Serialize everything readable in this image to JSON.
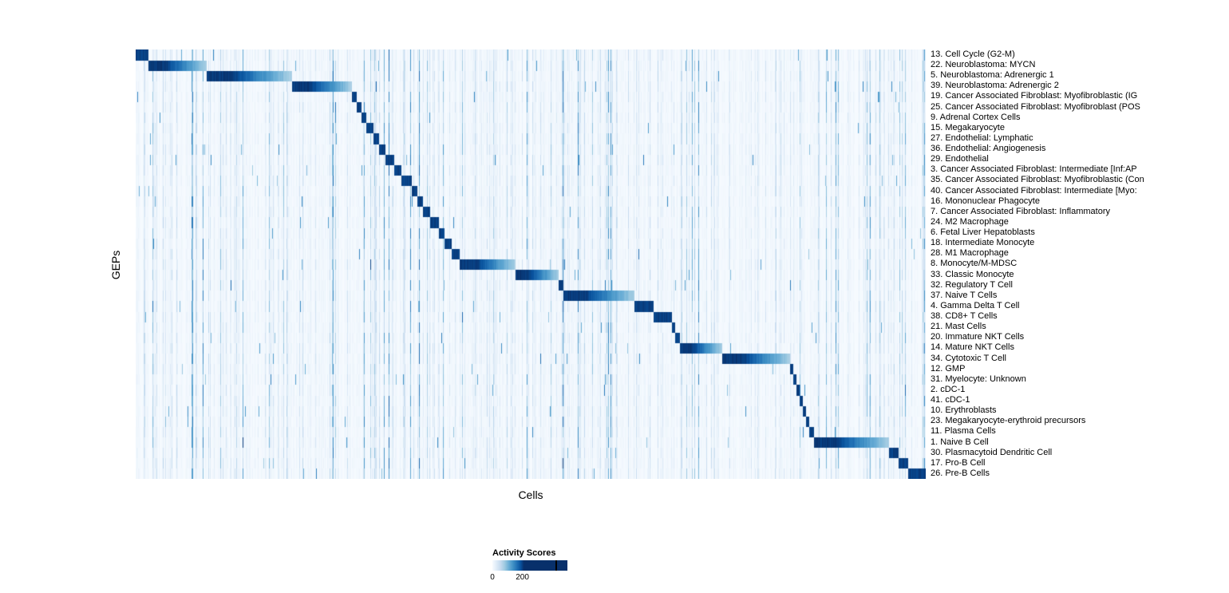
{
  "figure": {
    "background": "#ffffff"
  },
  "chart_data": {
    "type": "heatmap",
    "title": "",
    "xlabel": "Cells",
    "ylabel": "GEPs",
    "colormap": "Blues",
    "colormap_stops": [
      {
        "pos": 0,
        "color": "#f7fbff"
      },
      {
        "pos": 0.13,
        "color": "#deebf7"
      },
      {
        "pos": 0.26,
        "color": "#c6dbef"
      },
      {
        "pos": 0.39,
        "color": "#9ecae1"
      },
      {
        "pos": 0.52,
        "color": "#6baed6"
      },
      {
        "pos": 0.65,
        "color": "#4292c6"
      },
      {
        "pos": 0.78,
        "color": "#2171b5"
      },
      {
        "pos": 0.9,
        "color": "#08519c"
      },
      {
        "pos": 1,
        "color": "#08306b"
      }
    ],
    "value_range": [
      0,
      200
    ],
    "rows": [
      {
        "label": "13. Cell Cycle (G2-M)",
        "block": [
          0.0,
          0.016
        ]
      },
      {
        "label": "22. Neuroblastoma: MYCN",
        "block": [
          0.016,
          0.089
        ]
      },
      {
        "label": "5. Neuroblastoma: Adrenergic 1",
        "block": [
          0.089,
          0.197
        ]
      },
      {
        "label": "39. Neuroblastoma: Adrenergic 2",
        "block": [
          0.197,
          0.273
        ]
      },
      {
        "label": "19. Cancer Associated Fibroblast: Myofibroblastic (IG",
        "block": [
          0.273,
          0.279
        ]
      },
      {
        "label": "25. Cancer Associated Fibroblast: Myofibroblast (POS",
        "block": [
          0.279,
          0.285
        ]
      },
      {
        "label": "9. Adrenal Cortex Cells",
        "block": [
          0.285,
          0.291
        ]
      },
      {
        "label": "15. Megakaryocyte",
        "block": [
          0.291,
          0.301
        ]
      },
      {
        "label": "27. Endothelial: Lymphatic",
        "block": [
          0.301,
          0.308
        ]
      },
      {
        "label": "36. Endothelial: Angiogenesis",
        "block": [
          0.308,
          0.316
        ]
      },
      {
        "label": "29. Endothelial",
        "block": [
          0.316,
          0.327
        ]
      },
      {
        "label": "3. Cancer Associated Fibroblast: Intermediate [Inf:AP",
        "block": [
          0.327,
          0.336
        ]
      },
      {
        "label": "35. Cancer Associated Fibroblast: Myofibroblastic (Con",
        "block": [
          0.336,
          0.349
        ]
      },
      {
        "label": "40. Cancer Associated Fibroblast: Intermediate [Myo:",
        "block": [
          0.349,
          0.356
        ]
      },
      {
        "label": "16. Mononuclear Phagocyte",
        "block": [
          0.356,
          0.363
        ]
      },
      {
        "label": "7. Cancer Associated Fibroblast: Inflammatory",
        "block": [
          0.363,
          0.372
        ]
      },
      {
        "label": "24. M2 Macrophage",
        "block": [
          0.372,
          0.383
        ]
      },
      {
        "label": "6. Fetal Liver Hepatoblasts",
        "block": [
          0.383,
          0.39
        ]
      },
      {
        "label": "18. Intermediate Monocyte",
        "block": [
          0.39,
          0.399
        ]
      },
      {
        "label": "28. M1 Macrophage",
        "block": [
          0.399,
          0.41
        ]
      },
      {
        "label": "8. Monocyte/M-MDSC",
        "block": [
          0.41,
          0.48
        ]
      },
      {
        "label": "33. Classic Monocyte",
        "block": [
          0.48,
          0.535
        ]
      },
      {
        "label": "32. Regulatory T Cell",
        "block": [
          0.535,
          0.541
        ]
      },
      {
        "label": "37. Naive T Cells",
        "block": [
          0.541,
          0.631
        ]
      },
      {
        "label": "4. Gamma Delta T Cell",
        "block": [
          0.631,
          0.655
        ]
      },
      {
        "label": "38. CD8+ T Cells",
        "block": [
          0.655,
          0.678
        ]
      },
      {
        "label": "21. Mast Cells",
        "block": [
          0.678,
          0.682
        ]
      },
      {
        "label": "20. Immature NKT Cells",
        "block": [
          0.682,
          0.688
        ]
      },
      {
        "label": "14. Mature NKT Cells",
        "block": [
          0.688,
          0.742
        ]
      },
      {
        "label": "34. Cytotoxic T Cell",
        "block": [
          0.742,
          0.828
        ]
      },
      {
        "label": "12. GMP",
        "block": [
          0.828,
          0.832
        ]
      },
      {
        "label": "31. Myelocyte: Unknown",
        "block": [
          0.832,
          0.836
        ]
      },
      {
        "label": "2. cDC-1",
        "block": [
          0.836,
          0.84
        ]
      },
      {
        "label": "41. cDC-1",
        "block": [
          0.84,
          0.844
        ]
      },
      {
        "label": "10. Erythroblasts",
        "block": [
          0.844,
          0.848
        ]
      },
      {
        "label": "23. Megakaryocyte-erythroid precursors",
        "block": [
          0.848,
          0.852
        ]
      },
      {
        "label": "11. Plasma Cells",
        "block": [
          0.852,
          0.858
        ]
      },
      {
        "label": "1. Naive B Cell",
        "block": [
          0.858,
          0.953
        ]
      },
      {
        "label": "30. Plasmacytoid Dendritic Cell",
        "block": [
          0.953,
          0.965
        ]
      },
      {
        "label": "17. Pro-B Cell",
        "block": [
          0.965,
          0.977
        ]
      },
      {
        "label": "26. Pre-B Cells",
        "block": [
          0.977,
          1.0
        ]
      }
    ],
    "legend": {
      "title": "Activity Scores",
      "ticks": [
        {
          "label": "0",
          "pos": 0
        },
        {
          "label": "200",
          "pos": 0.4
        }
      ],
      "marker_pos": 0.84,
      "saturation_pos": 0.42
    }
  }
}
